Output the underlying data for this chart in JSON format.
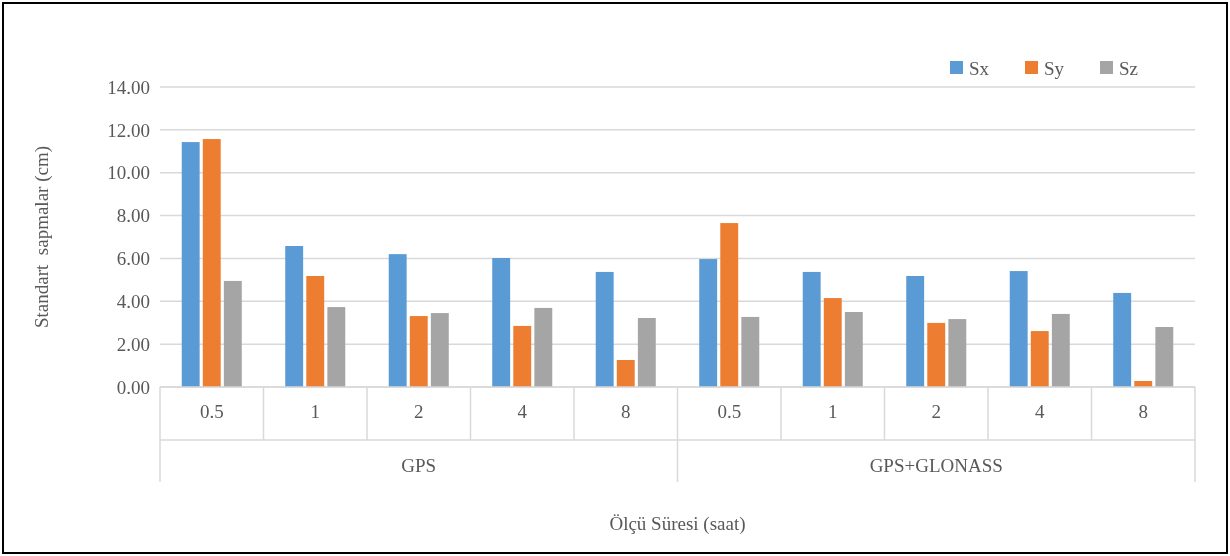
{
  "chart_data": {
    "type": "bar",
    "ylabel": "Standart  sapmalar (cm)",
    "xlabel": "Ölçü Süresi (saat)",
    "categories": [
      "0.5",
      "1",
      "2",
      "4",
      "8",
      "0.5",
      "1",
      "2",
      "4",
      "8"
    ],
    "annotations": [
      "GPS",
      "GPS+GLONASS"
    ],
    "series": [
      {
        "name": "Sx",
        "color": "#5b9bd5",
        "values": [
          11.43,
          6.58,
          6.2,
          6.02,
          5.37,
          5.97,
          5.37,
          5.18,
          5.41,
          4.39
        ]
      },
      {
        "name": "Sy",
        "color": "#ed7d31",
        "values": [
          11.57,
          5.18,
          3.31,
          2.85,
          1.26,
          7.65,
          4.15,
          2.99,
          2.61,
          0.28
        ]
      },
      {
        "name": "Sz",
        "color": "#a5a5a5",
        "values": [
          4.95,
          3.73,
          3.45,
          3.69,
          3.22,
          3.27,
          3.5,
          3.17,
          3.41,
          2.8
        ]
      }
    ],
    "ylim": [
      0,
      14
    ],
    "yticks": [
      {
        "value": 0,
        "label": "0.00"
      },
      {
        "value": 2,
        "label": "2.00"
      },
      {
        "value": 4,
        "label": "4.00"
      },
      {
        "value": 6,
        "label": "6.00"
      },
      {
        "value": 8,
        "label": "8.00"
      },
      {
        "value": 10,
        "label": "10.00"
      },
      {
        "value": 12,
        "label": "12.00"
      },
      {
        "value": 14,
        "label": "14.00"
      }
    ],
    "grid": "y",
    "legend": "top right"
  }
}
